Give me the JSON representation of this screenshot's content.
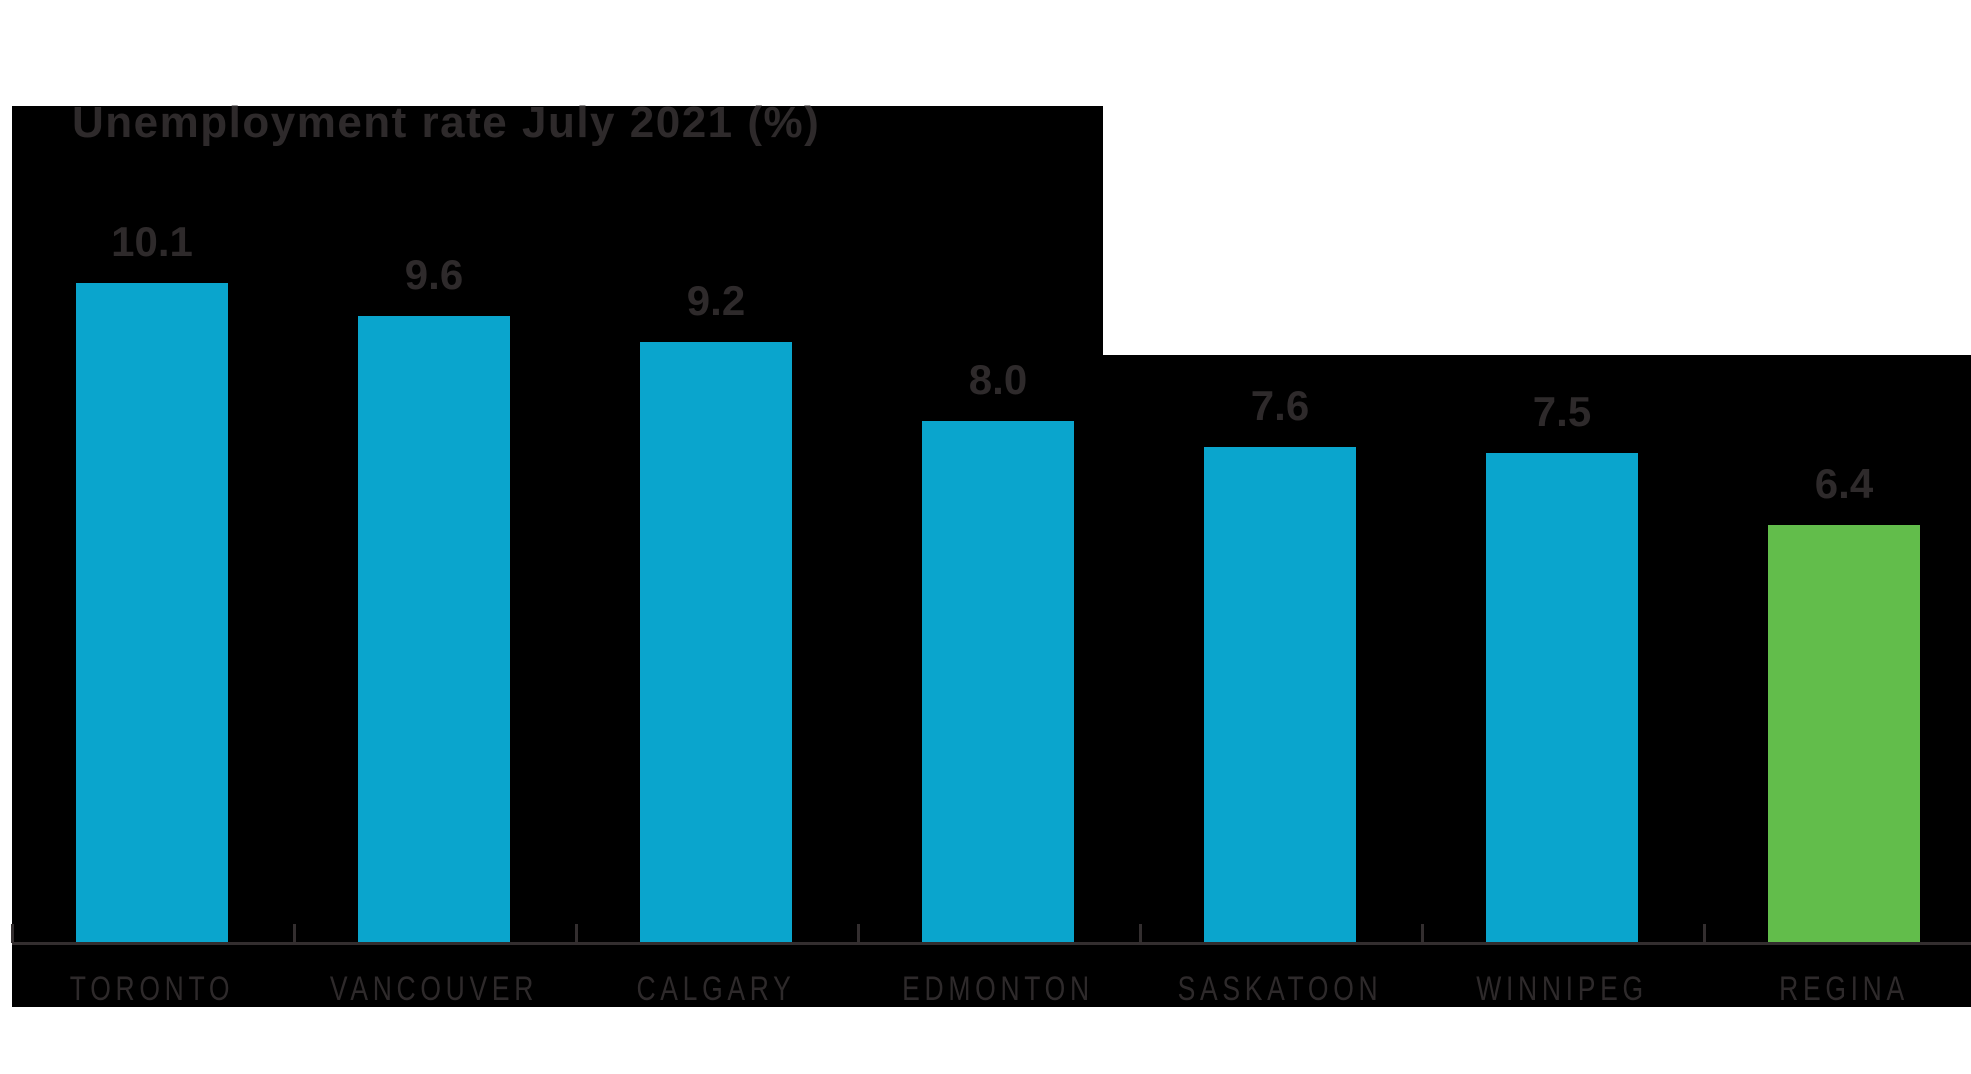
{
  "chart_data": {
    "type": "bar",
    "title": "Unemployment rate July 2021 (%)",
    "categories": [
      "TORONTO",
      "VANCOUVER",
      "CALGARY",
      "EDMONTON",
      "SASKATOON",
      "WINNIPEG",
      "REGINA"
    ],
    "values": [
      10.1,
      9.6,
      9.2,
      8.0,
      7.6,
      7.5,
      6.4
    ],
    "value_labels": [
      "10.1",
      "9.6",
      "9.2",
      "8.0",
      "7.6",
      "7.5",
      "6.4"
    ],
    "highlighted_category": "REGINA",
    "series_color": "#0aa5cd",
    "highlight_color": "#62bd4b",
    "text_color": "#2e2a2b",
    "axis_color": "#332e2f",
    "plot_background": "#000000",
    "page_background": "#ffffff",
    "ylim": [
      0,
      10.5
    ],
    "xlabel": "",
    "ylabel": "",
    "grid": false,
    "legend": false,
    "y_axis_visible": false,
    "x_axis_ticks": "between-categories"
  }
}
